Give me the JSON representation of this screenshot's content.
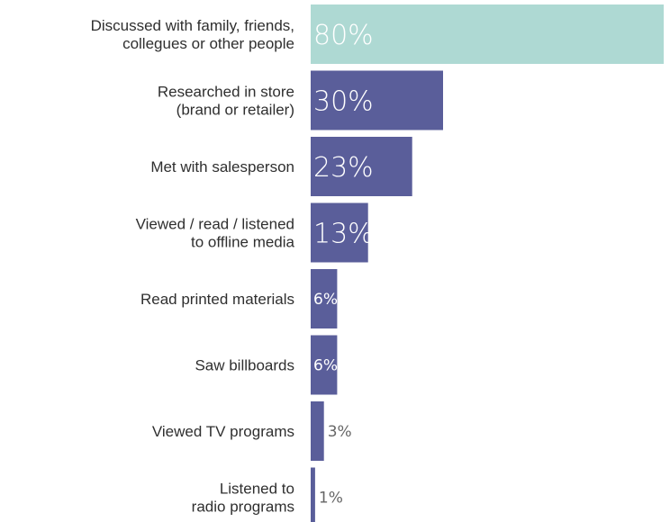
{
  "chart_data": {
    "type": "bar",
    "orientation": "horizontal",
    "categories": [
      [
        "Discussed with family, friends,",
        "collegues or other people"
      ],
      [
        "Researched in store",
        "(brand or retailer)"
      ],
      [
        "Met with salesperson"
      ],
      [
        "Viewed / read / listened",
        "to offline media"
      ],
      [
        "Read printed materials"
      ],
      [
        "Saw billboards"
      ],
      [
        "Viewed TV programs"
      ],
      [
        "Listened to",
        "radio programs"
      ]
    ],
    "values": [
      80,
      30,
      23,
      13,
      6,
      6,
      3,
      1
    ],
    "value_labels": [
      "80%",
      "30%",
      "23%",
      "13%",
      "6%",
      "6%",
      "3%",
      "1%"
    ],
    "xlim": [
      0,
      100
    ],
    "grid": false,
    "legend": "none",
    "colors": {
      "highlight_bar": "#aed9d3",
      "bar": "#5a5e9a",
      "inside_label": "#ffffff",
      "outside_label": "#666666",
      "category_label": "#2f2f2f"
    }
  }
}
